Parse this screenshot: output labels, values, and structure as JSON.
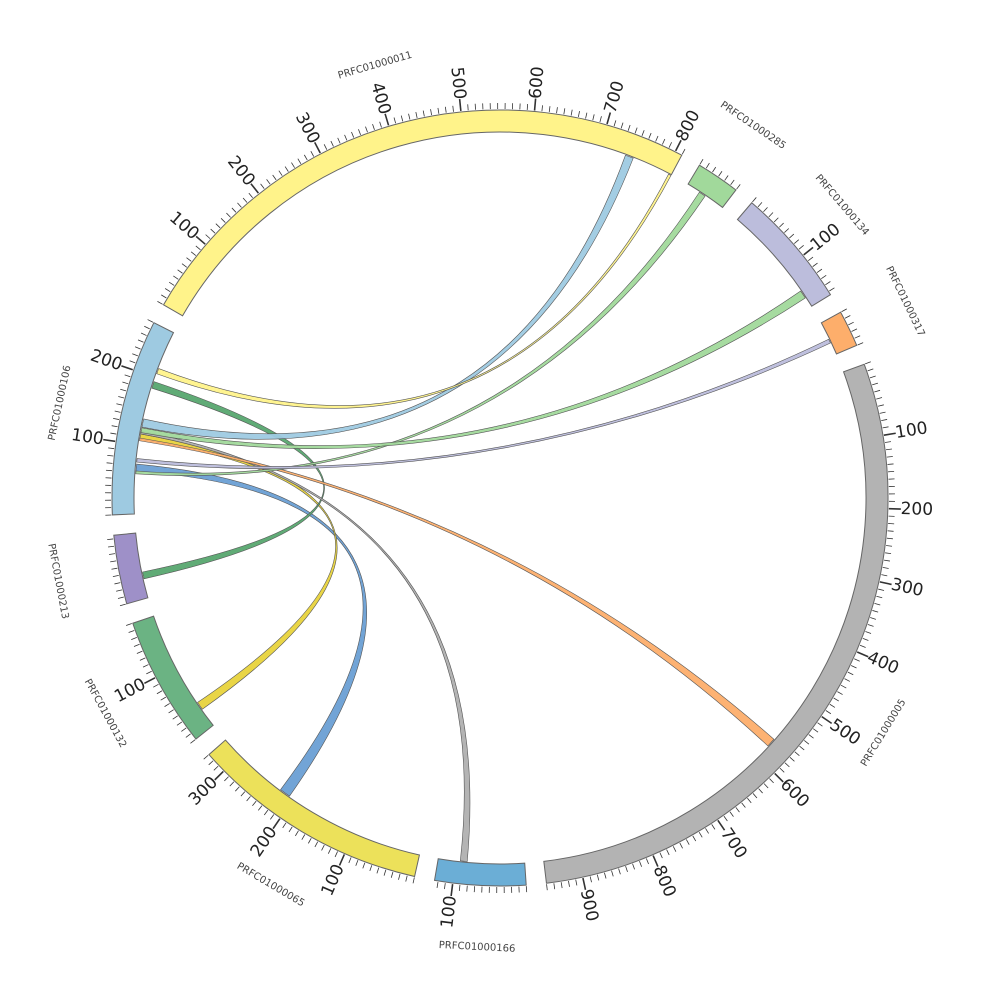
{
  "chart_data": {
    "type": "chord",
    "segments": [
      {
        "id": "PRFC01000106",
        "name": "PRFC01000106",
        "length": 270,
        "color": "#9ecae1",
        "ticks": [
          "100",
          "200"
        ]
      },
      {
        "id": "PRFC01000011",
        "name": "PRFC01000011",
        "length": 810,
        "color": "#fff38a",
        "ticks": [
          "100",
          "200",
          "300",
          "400",
          "500",
          "600",
          "700",
          "800"
        ]
      },
      {
        "id": "PRFC01000285",
        "name": "PRFC01000285",
        "length": 60,
        "color": "#a1d99b",
        "ticks": []
      },
      {
        "id": "PRFC01000134",
        "name": "PRFC01000134",
        "length": 165,
        "color": "#bcbddc",
        "ticks": [
          "100"
        ]
      },
      {
        "id": "PRFC01000317",
        "name": "PRFC01000317",
        "length": 50,
        "color": "#fdae6b",
        "ticks": []
      },
      {
        "id": "PRFC01000005",
        "name": "PRFC01000005",
        "length": 950,
        "color": "#b3b3b3",
        "ticks": [
          "100",
          "200",
          "300",
          "400",
          "500",
          "600",
          "700",
          "800",
          "900"
        ]
      },
      {
        "id": "PRFC01000166",
        "name": "PRFC01000166",
        "length": 125,
        "color": "#6baed6",
        "ticks": [
          "100"
        ]
      },
      {
        "id": "PRFC01000065",
        "name": "PRFC01000065",
        "length": 330,
        "color": "#ece15a",
        "ticks": [
          "100",
          "200",
          "300"
        ]
      },
      {
        "id": "PRFC01000132",
        "name": "PRFC01000132",
        "length": 180,
        "color": "#6bb383",
        "ticks": [
          "100"
        ]
      },
      {
        "id": "PRFC01000213",
        "name": "PRFC01000213",
        "length": 95,
        "color": "#9e90c8",
        "ticks": []
      }
    ],
    "links": [
      {
        "source": "PRFC01000065",
        "source_range": [
          207,
          223
        ],
        "target": "PRFC01000106",
        "target_range": [
          62,
          72
        ],
        "color": "#6a9fd4"
      },
      {
        "source": "PRFC01000132",
        "source_range": [
          28,
          40
        ],
        "target": "PRFC01000106",
        "target_range": [
          108,
          116
        ],
        "color": "#e8d33c"
      },
      {
        "source": "PRFC01000213",
        "source_range": [
          28,
          38
        ],
        "target": "PRFC01000106",
        "target_range": [
          184,
          194
        ],
        "color": "#57a66f"
      },
      {
        "source": "PRFC01000166",
        "source_range": [
          83,
          93
        ],
        "target": "PRFC01000106",
        "target_range": [
          116,
          120
        ],
        "color": "#b0b0b0"
      },
      {
        "source": "PRFC01000005",
        "source_range": [
          566,
          579
        ],
        "target": "PRFC01000106",
        "target_range": [
          106,
          110
        ],
        "color": "#fdae6b"
      },
      {
        "source": "PRFC01000106",
        "source_range": [
          58,
          62
        ],
        "target": "PRFC01000285",
        "target_range": [
          20,
          30
        ],
        "color": "#a1d99b"
      },
      {
        "source": "PRFC01000106",
        "source_range": [
          75,
          80
        ],
        "target": "PRFC01000317",
        "target_range": [
          26,
          32
        ],
        "color": "#bcbddc"
      },
      {
        "source": "PRFC01000106",
        "source_range": [
          118,
          125
        ],
        "target": "PRFC01000134",
        "target_range": [
          138,
          150
        ],
        "color": "#a1d99b"
      },
      {
        "source": "PRFC01000106",
        "source_range": [
          126,
          138
        ],
        "target": "PRFC01000011",
        "target_range": [
          738,
          750
        ],
        "color": "#9ecae1"
      },
      {
        "source": "PRFC01000106",
        "source_range": [
          206,
          214
        ],
        "target": "PRFC01000011",
        "target_range": [
          806,
          810
        ],
        "color": "#fff38a"
      }
    ]
  }
}
